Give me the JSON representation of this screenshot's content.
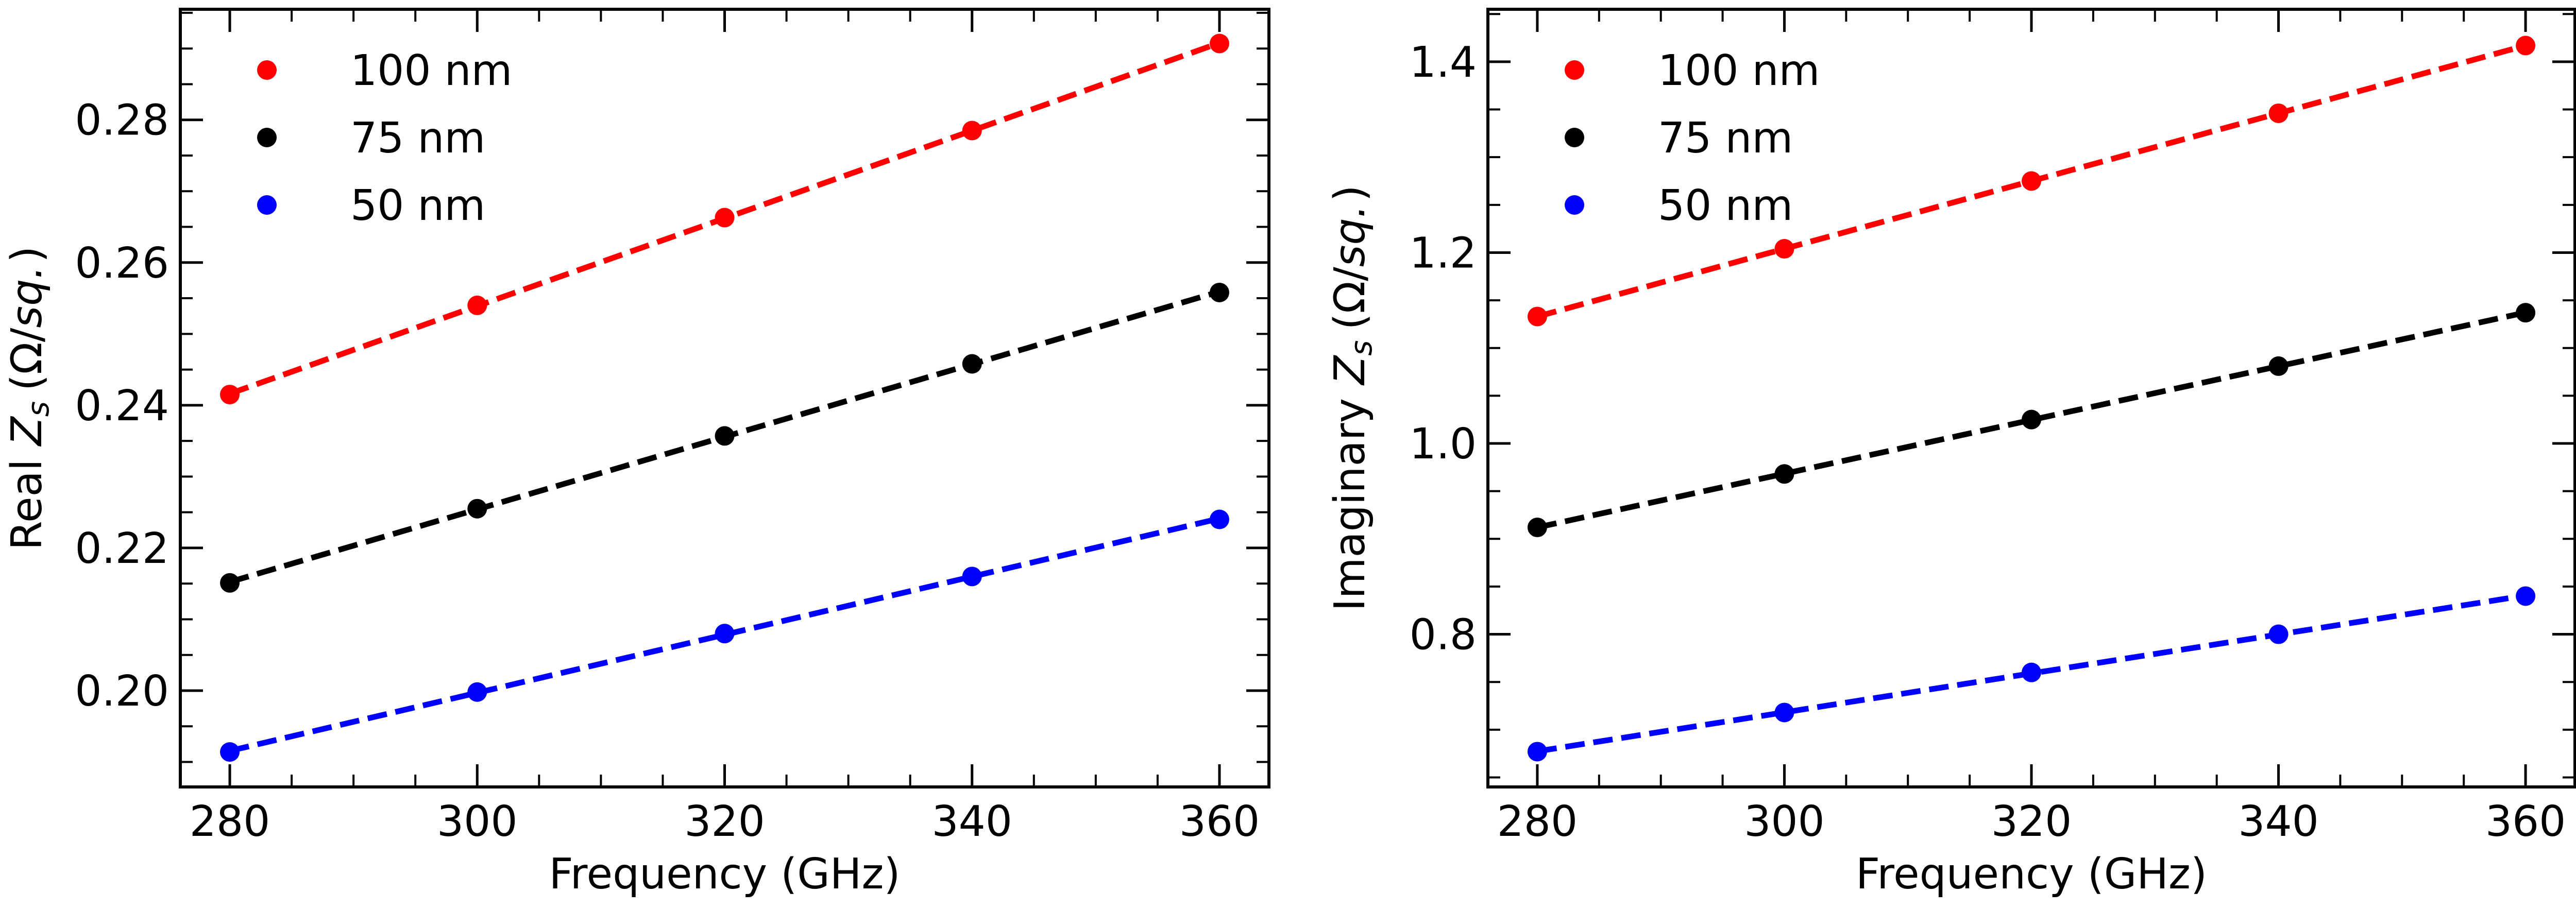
{
  "chart_data": [
    {
      "type": "scatter",
      "xlabel": "Frequency (GHz)",
      "ylabel_prefix": "Real",
      "ylabel_symbol": "Z",
      "ylabel_subscript": "s",
      "ylabel_unit_open": "(Ω/",
      "ylabel_unit_italic": "sq.",
      "ylabel_unit_close": ")",
      "xlim": [
        276,
        364
      ],
      "ylim": [
        0.1865,
        0.2955
      ],
      "xticks": [
        280,
        300,
        320,
        340,
        360
      ],
      "xtick_labels": [
        "280",
        "300",
        "320",
        "340",
        "360"
      ],
      "yticks": [
        0.2,
        0.22,
        0.24,
        0.26,
        0.28
      ],
      "ytick_labels": [
        "0.20",
        "0.22",
        "0.24",
        "0.26",
        "0.28"
      ],
      "grid": false,
      "legend_position": "top-left",
      "x": [
        280,
        300,
        320,
        340,
        360
      ],
      "series": [
        {
          "name": "100 nm",
          "color": "#ff0000",
          "values": [
            0.2415,
            0.254,
            0.2663,
            0.2785,
            0.2907
          ],
          "fit_line": "dashed"
        },
        {
          "name": "75 nm",
          "color": "#000000",
          "values": [
            0.2151,
            0.2255,
            0.2357,
            0.2458,
            0.2558
          ],
          "fit_line": "dashed"
        },
        {
          "name": "50 nm",
          "color": "#0000ff",
          "values": [
            0.1914,
            0.1998,
            0.208,
            0.216,
            0.224
          ],
          "fit_line": "dashed"
        }
      ]
    },
    {
      "type": "scatter",
      "xlabel": "Frequency (GHz)",
      "ylabel_prefix": "Imaginary",
      "ylabel_symbol": "Z",
      "ylabel_subscript": "s",
      "ylabel_unit_open": "(Ω/",
      "ylabel_unit_italic": "sq.",
      "ylabel_unit_close": ")",
      "xlim": [
        276,
        364
      ],
      "ylim": [
        0.64,
        1.455
      ],
      "xticks": [
        280,
        300,
        320,
        340,
        360
      ],
      "xtick_labels": [
        "280",
        "300",
        "320",
        "340",
        "360"
      ],
      "yticks": [
        0.8,
        1.0,
        1.2,
        1.4
      ],
      "ytick_labels": [
        "0.8",
        "1.0",
        "1.2",
        "1.4"
      ],
      "grid": false,
      "legend_position": "top-left",
      "x": [
        280,
        300,
        320,
        340,
        360
      ],
      "series": [
        {
          "name": "100 nm",
          "color": "#ff0000",
          "values": [
            1.133,
            1.204,
            1.275,
            1.346,
            1.417
          ],
          "fit_line": "dashed"
        },
        {
          "name": "75 nm",
          "color": "#000000",
          "values": [
            0.912,
            0.968,
            1.025,
            1.081,
            1.137
          ],
          "fit_line": "dashed"
        },
        {
          "name": "50 nm",
          "color": "#0000ff",
          "values": [
            0.677,
            0.718,
            0.76,
            0.8,
            0.84
          ],
          "fit_line": "dashed"
        }
      ]
    }
  ]
}
